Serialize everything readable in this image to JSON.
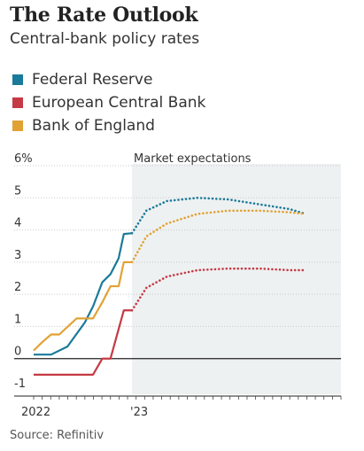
{
  "header": {
    "title": "The Rate Outlook",
    "subtitle": "Central-bank policy rates"
  },
  "legend": [
    {
      "label": "Federal Reserve",
      "color": "#1a7a99"
    },
    {
      "label": "European Central Bank",
      "color": "#c53a45"
    },
    {
      "label": "Bank of England",
      "color": "#e1a234"
    }
  ],
  "footer": {
    "source": "Source: Refinitiv"
  },
  "chart_data": {
    "type": "line",
    "title": "The Rate Outlook",
    "subtitle": "Central-bank policy rates",
    "xlabel": "",
    "ylabel": "",
    "x_ticks": [
      "2022",
      "'23"
    ],
    "y_ticks": [
      "6%",
      "5",
      "4",
      "3",
      "2",
      "1",
      "0",
      "-1"
    ],
    "ylim": [
      -1,
      6
    ],
    "xlim": [
      2022.0,
      2025.0
    ],
    "grid": "horizontal",
    "shaded_region": {
      "label": "Market expectations",
      "x_start": 2022.96,
      "x_end": 2025.0,
      "color": "#eef1f2"
    },
    "series": [
      {
        "name": "Federal Reserve",
        "color": "#1a7a99",
        "actual": [
          [
            2022.0,
            0.125
          ],
          [
            2022.17,
            0.125
          ],
          [
            2022.33,
            0.375
          ],
          [
            2022.5,
            1.125
          ],
          [
            2022.58,
            1.625
          ],
          [
            2022.67,
            2.375
          ],
          [
            2022.75,
            2.625
          ],
          [
            2022.83,
            3.125
          ],
          [
            2022.88,
            3.875
          ],
          [
            2022.96,
            3.9
          ]
        ],
        "expected": [
          [
            2022.96,
            3.9
          ],
          [
            2023.1,
            4.6
          ],
          [
            2023.3,
            4.9
          ],
          [
            2023.6,
            5.0
          ],
          [
            2023.9,
            4.95
          ],
          [
            2024.2,
            4.8
          ],
          [
            2024.5,
            4.65
          ],
          [
            2024.65,
            4.5
          ]
        ]
      },
      {
        "name": "European Central Bank",
        "color": "#c53a45",
        "actual": [
          [
            2022.0,
            -0.5
          ],
          [
            2022.58,
            -0.5
          ],
          [
            2022.67,
            0.0
          ],
          [
            2022.75,
            0.0
          ],
          [
            2022.88,
            1.5
          ],
          [
            2022.96,
            1.5
          ]
        ],
        "expected": [
          [
            2022.96,
            1.5
          ],
          [
            2023.1,
            2.2
          ],
          [
            2023.3,
            2.55
          ],
          [
            2023.6,
            2.75
          ],
          [
            2023.9,
            2.8
          ],
          [
            2024.2,
            2.8
          ],
          [
            2024.5,
            2.75
          ],
          [
            2024.65,
            2.75
          ]
        ]
      },
      {
        "name": "Bank of England",
        "color": "#e1a234",
        "actual": [
          [
            2022.0,
            0.25
          ],
          [
            2022.08,
            0.5
          ],
          [
            2022.17,
            0.75
          ],
          [
            2022.25,
            0.75
          ],
          [
            2022.42,
            1.25
          ],
          [
            2022.58,
            1.25
          ],
          [
            2022.67,
            1.75
          ],
          [
            2022.75,
            2.25
          ],
          [
            2022.83,
            2.25
          ],
          [
            2022.88,
            3.0
          ],
          [
            2022.96,
            3.0
          ]
        ],
        "expected": [
          [
            2022.96,
            3.0
          ],
          [
            2023.1,
            3.8
          ],
          [
            2023.3,
            4.2
          ],
          [
            2023.6,
            4.5
          ],
          [
            2023.9,
            4.6
          ],
          [
            2024.2,
            4.6
          ],
          [
            2024.5,
            4.55
          ],
          [
            2024.65,
            4.5
          ]
        ]
      }
    ]
  }
}
